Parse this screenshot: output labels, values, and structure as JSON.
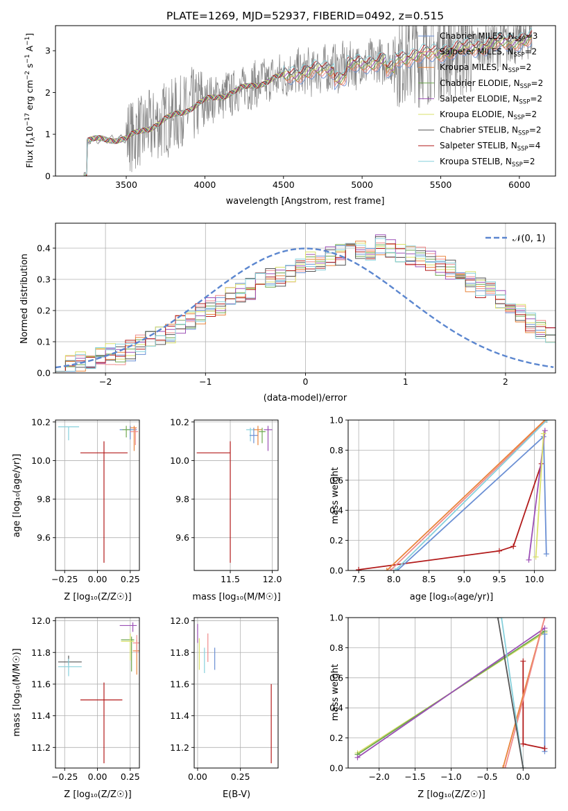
{
  "figure": {
    "title": "PLATE=1269, MJD=52937, FIBERID=0492, z=0.515"
  },
  "legend_models": [
    {
      "name": "Chabrier MILES",
      "nssp": "3",
      "color": "#6a8fd4"
    },
    {
      "name": "Salpeter MILES",
      "nssp": "2",
      "color": "#ef8a8a"
    },
    {
      "name": "Kroupa MILES",
      "nssp": "2",
      "color": "#e8833a"
    },
    {
      "name": "Chabrier ELODIE",
      "nssp": "2",
      "color": "#6fa84f"
    },
    {
      "name": "Salpeter ELODIE",
      "nssp": "2",
      "color": "#9b4fb5"
    },
    {
      "name": "Kroupa ELODIE",
      "nssp": "2",
      "color": "#d9e06a"
    },
    {
      "name": "Chabrier STELIB",
      "nssp": "2",
      "color": "#555555"
    },
    {
      "name": "Salpeter STELIB",
      "nssp": "4",
      "color": "#b21a1a"
    },
    {
      "name": "Kroupa STELIB",
      "nssp": "2",
      "color": "#86d0dc"
    }
  ],
  "chart_data": [
    {
      "id": "spectrum",
      "type": "line",
      "xlabel": "wavelength [Angstrom, rest frame]",
      "ylabel_parts": {
        "a": "Flux [f",
        "sub1": "λ",
        "b": "10",
        "sup1": "−17",
        "c": " erg cm",
        "sup2": "−2",
        "d": " s",
        "sup3": "−1",
        "e": " A",
        "sup4": "−1",
        "f": "]"
      },
      "xlim": [
        3050,
        6230
      ],
      "ylim": [
        0,
        3.6
      ],
      "xticks": [
        3500,
        4000,
        4500,
        5000,
        5500,
        6000
      ],
      "yticks": [
        0,
        1,
        2,
        3
      ],
      "legend_position": "upper-right",
      "grid": false
    },
    {
      "id": "residuals",
      "type": "step",
      "xlabel": "(data-model)/error",
      "ylabel": "Normed distribution",
      "xlim": [
        -2.5,
        2.5
      ],
      "ylim": [
        0,
        0.48
      ],
      "xticks": [
        -2,
        -1,
        0,
        1,
        2
      ],
      "yticks": [
        0.0,
        0.1,
        0.2,
        0.3,
        0.4
      ],
      "legend_label": "𝒩(0, 1)",
      "grid": true,
      "bin_edges_start": -2.5,
      "bin_width": 0.1,
      "example_heights": [
        0.03,
        0.03,
        0.04,
        0.04,
        0.05,
        0.06,
        0.06,
        0.07,
        0.09,
        0.1,
        0.12,
        0.13,
        0.15,
        0.17,
        0.19,
        0.21,
        0.22,
        0.24,
        0.26,
        0.27,
        0.29,
        0.3,
        0.31,
        0.32,
        0.34,
        0.36,
        0.35,
        0.37,
        0.38,
        0.39,
        0.4,
        0.39,
        0.41,
        0.4,
        0.39,
        0.38,
        0.37,
        0.36,
        0.34,
        0.33,
        0.31,
        0.29,
        0.27,
        0.26,
        0.23,
        0.21,
        0.19,
        0.16,
        0.14,
        0.12
      ]
    },
    {
      "id": "age_vs_Z",
      "type": "errorbar",
      "xlabel": "Z [log₁₀(Z/Z☉)]",
      "ylabel": "age  [log₁₀(age/yr)]",
      "xlim": [
        -0.32,
        0.32
      ],
      "ylim": [
        9.43,
        10.21
      ],
      "xticks": [
        -0.25,
        0.0,
        0.25
      ],
      "yticks": [
        9.6,
        9.8,
        10.0,
        10.2
      ],
      "grid": true,
      "points": [
        {
          "model": "Kroupa STELIB",
          "x": -0.22,
          "xerr": [
            0.08,
            0.08
          ],
          "y": 10.175,
          "yerr": [
            0.07,
            0.0
          ]
        },
        {
          "model": "Salpeter STELIB",
          "x": 0.05,
          "xerr": [
            0.18,
            0.18
          ],
          "y": 10.04,
          "yerr": [
            0.57,
            0.06
          ]
        },
        {
          "model": "Chabrier MILES",
          "x": 0.25,
          "xerr": [
            0.08,
            0.05
          ],
          "y": 10.16,
          "yerr": [
            0.05,
            0.02
          ]
        },
        {
          "model": "Kroupa MILES",
          "x": 0.28,
          "xerr": [
            0.03,
            0.02
          ],
          "y": 10.17,
          "yerr": [
            0.12,
            0.01
          ]
        },
        {
          "model": "Salpeter MILES",
          "x": 0.29,
          "xerr": [
            0.04,
            0.02
          ],
          "y": 10.15,
          "yerr": [
            0.07,
            0.02
          ]
        },
        {
          "model": "Chabrier ELODIE",
          "x": 0.22,
          "xerr": [
            0.03,
            0.03
          ],
          "y": 10.16,
          "yerr": [
            0.04,
            0.02
          ]
        }
      ]
    },
    {
      "id": "age_vs_mass",
      "type": "errorbar",
      "xlabel": "mass [log₁₀(M/M☉)]",
      "ylabel": "",
      "xlim": [
        11.07,
        12.07
      ],
      "ylim": [
        9.43,
        10.21
      ],
      "xticks": [
        11.5,
        12.0
      ],
      "yticks": [
        9.6,
        9.8,
        10.0,
        10.2
      ],
      "grid": true,
      "points": [
        {
          "model": "Salpeter STELIB",
          "x": 11.5,
          "xerr": [
            0.4,
            0.0
          ],
          "y": 10.04,
          "yerr": [
            0.57,
            0.06
          ]
        },
        {
          "model": "Kroupa STELIB",
          "x": 11.74,
          "xerr": [
            0.05,
            0.05
          ],
          "y": 10.16,
          "yerr": [
            0.06,
            0.01
          ]
        },
        {
          "model": "Chabrier MILES",
          "x": 11.78,
          "xerr": [
            0.05,
            0.05
          ],
          "y": 10.13,
          "yerr": [
            0.04,
            0.04
          ]
        },
        {
          "model": "Kroupa MILES",
          "x": 11.83,
          "xerr": [
            0.05,
            0.05
          ],
          "y": 10.16,
          "yerr": [
            0.08,
            0.02
          ]
        },
        {
          "model": "Salpeter ELODIE",
          "x": 11.95,
          "xerr": [
            0.05,
            0.05
          ],
          "y": 10.16,
          "yerr": [
            0.11,
            0.02
          ]
        },
        {
          "model": "Chabrier ELODIE",
          "x": 11.88,
          "xerr": [
            0.04,
            0.04
          ],
          "y": 10.15,
          "yerr": [
            0.06,
            0.02
          ]
        }
      ]
    },
    {
      "id": "weight_vs_age",
      "type": "line",
      "xlabel": "age  [log₁₀(age/yr)]",
      "ylabel": "mass weight",
      "xlim": [
        7.35,
        10.3
      ],
      "ylim": [
        0,
        1.0
      ],
      "xticks": [
        7.5,
        8.0,
        8.5,
        9.0,
        9.5,
        10.0
      ],
      "yticks": [
        0.0,
        0.2,
        0.4,
        0.6,
        0.8,
        1.0
      ],
      "grid": true,
      "series": [
        {
          "model": "Salpeter STELIB",
          "x": [
            7.5,
            9.5,
            9.7,
            10.1
          ],
          "y": [
            0.005,
            0.13,
            0.16,
            0.71
          ]
        },
        {
          "model": "Chabrier MILES",
          "x": [
            8.05,
            10.13,
            10.17
          ],
          "y": [
            0.0,
            0.89,
            0.11
          ]
        },
        {
          "model": "Salpeter ELODIE",
          "x": [
            9.92,
            10.15
          ],
          "y": [
            0.07,
            0.93
          ]
        },
        {
          "model": "Kroupa ELODIE",
          "x": [
            10.02,
            10.13
          ],
          "y": [
            0.09,
            0.91
          ]
        },
        {
          "model": "Salpeter MILES",
          "x": [
            7.95,
            10.17
          ],
          "y": [
            0.0,
            1.0
          ]
        },
        {
          "model": "Kroupa MILES",
          "x": [
            7.9,
            10.15
          ],
          "y": [
            0.0,
            1.0
          ]
        },
        {
          "model": "Kroupa STELIB",
          "x": [
            8.02,
            10.18
          ],
          "y": [
            0.0,
            1.0
          ]
        }
      ]
    },
    {
      "id": "mass_vs_Z",
      "type": "errorbar",
      "xlabel": "Z [log₁₀(Z/Z☉)]",
      "ylabel": "mass [log₁₀(M/M☉)]",
      "xlim": [
        -0.32,
        0.32
      ],
      "ylim": [
        11.07,
        12.02
      ],
      "xticks": [
        -0.25,
        0.0,
        0.25
      ],
      "yticks": [
        11.2,
        11.4,
        11.6,
        11.8,
        12.0
      ],
      "grid": true,
      "points": [
        {
          "model": "Chabrier STELIB",
          "x": -0.22,
          "xerr": [
            0.08,
            0.1
          ],
          "y": 11.74,
          "yerr": [
            0.02,
            0.04
          ]
        },
        {
          "model": "Kroupa STELIB",
          "x": -0.22,
          "xerr": [
            0.08,
            0.1
          ],
          "y": 11.71,
          "yerr": [
            0.06,
            0.05
          ]
        },
        {
          "model": "Salpeter STELIB",
          "x": 0.05,
          "xerr": [
            0.18,
            0.14
          ],
          "y": 11.5,
          "yerr": [
            0.4,
            0.11
          ]
        },
        {
          "model": "Salpeter ELODIE",
          "x": 0.27,
          "xerr": [
            0.1,
            0.03
          ],
          "y": 11.97,
          "yerr": [
            0.04,
            0.02
          ]
        },
        {
          "model": "Chabrier ELODIE",
          "x": 0.26,
          "xerr": [
            0.08,
            0.02
          ],
          "y": 11.88,
          "yerr": [
            0.2,
            0.02
          ]
        },
        {
          "model": "Kroupa ELODIE",
          "x": 0.25,
          "xerr": [
            0.07,
            0.03
          ],
          "y": 11.87,
          "yerr": [
            0.12,
            0.05
          ]
        },
        {
          "model": "Kroupa MILES",
          "x": 0.3,
          "xerr": [
            0.03,
            0.02
          ],
          "y": 11.81,
          "yerr": [
            0.15,
            0.07
          ]
        },
        {
          "model": "Salpeter MILES",
          "x": 0.3,
          "xerr": [
            0.03,
            0.02
          ],
          "y": 11.86,
          "yerr": [
            0.07,
            0.05
          ]
        }
      ]
    },
    {
      "id": "mass_vs_EBV",
      "type": "errorbar",
      "xlabel": "E(B-V)",
      "ylabel": "",
      "xlim": [
        -0.02,
        0.47
      ],
      "ylim": [
        11.07,
        12.02
      ],
      "xticks": [
        0.0,
        0.25
      ],
      "tick_labels_x": [
        "0.00",
        "0.25"
      ],
      "yticks": [
        11.2,
        11.4,
        11.6,
        11.8,
        12.0
      ],
      "grid": true,
      "points": [
        {
          "model": "Salpeter ELODIE",
          "x": 0.0,
          "y": 11.92,
          "yerr": [
            0.06,
            0.06
          ]
        },
        {
          "model": "Kroupa ELODIE",
          "x": 0.01,
          "y": 11.79,
          "yerr": [
            0.1,
            0.1
          ]
        },
        {
          "model": "Kroupa STELIB",
          "x": 0.04,
          "y": 11.75,
          "yerr": [
            0.08,
            0.08
          ]
        },
        {
          "model": "Salpeter MILES",
          "x": 0.06,
          "y": 11.83,
          "yerr": [
            0.09,
            0.09
          ]
        },
        {
          "model": "Chabrier MILES",
          "x": 0.1,
          "y": 11.76,
          "yerr": [
            0.07,
            0.07
          ]
        },
        {
          "model": "Salpeter STELIB",
          "x": 0.43,
          "y": 11.35,
          "yerr": [
            0.25,
            0.25
          ]
        }
      ]
    },
    {
      "id": "weight_vs_Z",
      "type": "line",
      "xlabel": "Z [log₁₀(Z/Z☉)]",
      "ylabel": "mass weight",
      "xlim": [
        -2.43,
        0.45
      ],
      "ylim": [
        0,
        1.0
      ],
      "xticks": [
        -2.0,
        -1.5,
        -1.0,
        -0.5,
        0.0
      ],
      "yticks": [
        0.0,
        0.2,
        0.4,
        0.6,
        0.8,
        1.0
      ],
      "grid": true,
      "series": [
        {
          "model": "Kroupa ELODIE",
          "x": [
            -2.3,
            0.3
          ],
          "y": [
            0.1,
            0.9
          ]
        },
        {
          "model": "Chabrier ELODIE",
          "x": [
            -2.3,
            0.3
          ],
          "y": [
            0.09,
            0.91
          ]
        },
        {
          "model": "Salpeter ELODIE",
          "x": [
            -2.3,
            0.3
          ],
          "y": [
            0.07,
            0.93
          ]
        },
        {
          "model": "Chabrier MILES",
          "x": [
            0.3,
            0.3
          ],
          "y": [
            0.11,
            0.89
          ]
        },
        {
          "model": "Salpeter STELIB",
          "x": [
            0.0,
            0.0,
            0.3
          ],
          "y": [
            0.71,
            0.16,
            0.13
          ]
        },
        {
          "model": "Kroupa MILES",
          "x": [
            -0.28,
            0.3
          ],
          "y": [
            0.0,
            1.0
          ]
        },
        {
          "model": "Salpeter MILES",
          "x": [
            -0.25,
            0.3
          ],
          "y": [
            0.0,
            1.0
          ]
        },
        {
          "model": "Kroupa STELIB",
          "x": [
            -0.3,
            0.0
          ],
          "y": [
            1.0,
            0.0
          ]
        },
        {
          "model": "Chabrier STELIB",
          "x": [
            -0.35,
            0.0
          ],
          "y": [
            1.0,
            0.0
          ]
        }
      ]
    }
  ]
}
